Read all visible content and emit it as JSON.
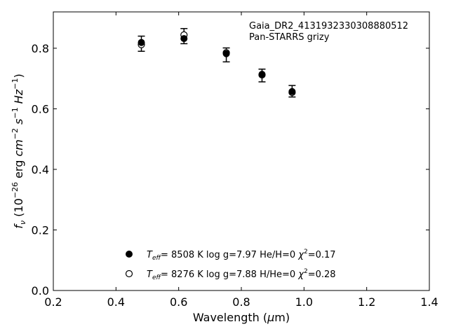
{
  "chart_data": {
    "type": "scatter",
    "xlabel_main": "Wavelength (",
    "xlabel_mu": "μ",
    "xlabel_tail": "m)",
    "ylabel_f": "f",
    "ylabel_nu": "ν",
    "ylabel_open": " (10",
    "ylabel_exp1": "−26",
    "ylabel_erg": " erg ",
    "ylabel_cm": "cm",
    "ylabel_exp2": "−2",
    "ylabel_s": "s",
    "ylabel_exp3": "−1",
    "ylabel_hz": "Hz",
    "ylabel_exp4": "−1",
    "ylabel_close": ")",
    "xlim": [
      0.2,
      1.4
    ],
    "ylim": [
      0.0,
      0.92
    ],
    "xticks": [
      0.2,
      0.4,
      0.6,
      0.8,
      1.0,
      1.2,
      1.4
    ],
    "xtick_labels": [
      "0.2",
      "0.4",
      "0.6",
      "0.8",
      "1.0",
      "1.2",
      "1.4"
    ],
    "yticks": [
      0.0,
      0.2,
      0.4,
      0.6,
      0.8
    ],
    "ytick_labels": [
      "0.0",
      "0.2",
      "0.4",
      "0.6",
      "0.8"
    ],
    "grid": false,
    "annotation": [
      "Gaia_DR2_4131932330308880512",
      "Pan-STARRS grizy"
    ],
    "observed": {
      "x": [
        0.481,
        0.617,
        0.752,
        0.866,
        0.962
      ],
      "y": [
        0.815,
        0.84,
        0.778,
        0.71,
        0.658
      ],
      "yerr": [
        0.025,
        0.025,
        0.023,
        0.021,
        0.019
      ]
    },
    "series": [
      {
        "marker": "filled",
        "x": [
          0.481,
          0.617,
          0.752,
          0.866,
          0.962
        ],
        "y": [
          0.819,
          0.832,
          0.782,
          0.714,
          0.657
        ],
        "label": {
          "teff": "T",
          "eff": "eff",
          "rest": "=  8508 K  log g=7.97  He/H=0  ",
          "chi": "χ",
          "chi_exp": "2",
          "chi_val": "=0.17"
        }
      },
      {
        "marker": "open",
        "x": [
          0.481,
          0.617,
          0.752,
          0.866,
          0.962
        ],
        "y": [
          0.812,
          0.844,
          0.785,
          0.712,
          0.654
        ],
        "label": {
          "teff": "T",
          "eff": "eff",
          "rest": "=  8276 K  log g=7.88  H/He=0  ",
          "chi": "χ",
          "chi_exp": "2",
          "chi_val": "=0.28"
        }
      }
    ],
    "legend_placement": "lower-center"
  }
}
